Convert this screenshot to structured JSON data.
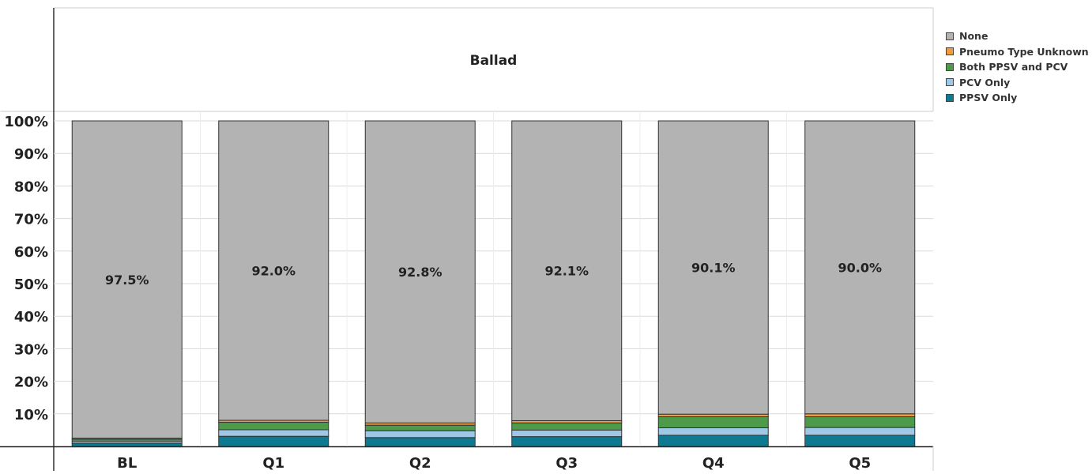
{
  "chart_data": {
    "type": "bar",
    "stacked": true,
    "normalized": true,
    "title": "Ballad",
    "xlabel": "",
    "ylabel": "",
    "categories": [
      "BL",
      "Q1",
      "Q2",
      "Q3",
      "Q4",
      "Q5"
    ],
    "yticks": [
      "10%",
      "20%",
      "30%",
      "40%",
      "50%",
      "60%",
      "70%",
      "80%",
      "90%",
      "100%"
    ],
    "ylim": [
      0,
      100
    ],
    "grid": true,
    "legend_position": "top-right",
    "series": [
      {
        "name": "PPSV Only",
        "color": "#0e7a91",
        "values": [
          1.0,
          3.1,
          2.7,
          3.0,
          3.4,
          3.4
        ]
      },
      {
        "name": "PCV Only",
        "color": "#9fc8e6",
        "values": [
          0.6,
          2.0,
          2.1,
          2.0,
          2.3,
          2.4
        ]
      },
      {
        "name": "Both PPSV and PCV",
        "color": "#4c9a4a",
        "values": [
          0.6,
          2.3,
          1.7,
          2.2,
          3.4,
          3.3
        ]
      },
      {
        "name": "Pneumo Type Unknown",
        "color": "#f19a3e",
        "values": [
          0.3,
          0.6,
          0.7,
          0.7,
          0.8,
          0.9
        ]
      },
      {
        "name": "None",
        "color": "#b3b3b3",
        "values": [
          97.5,
          92.0,
          92.8,
          92.1,
          90.1,
          90.0
        ]
      }
    ],
    "data_labels": [
      "97.5%",
      "92.0%",
      "92.8%",
      "92.1%",
      "90.1%",
      "90.0%"
    ],
    "legend_order": [
      "None",
      "Pneumo Type Unknown",
      "Both PPSV and PCV",
      "PCV Only",
      "PPSV Only"
    ]
  }
}
